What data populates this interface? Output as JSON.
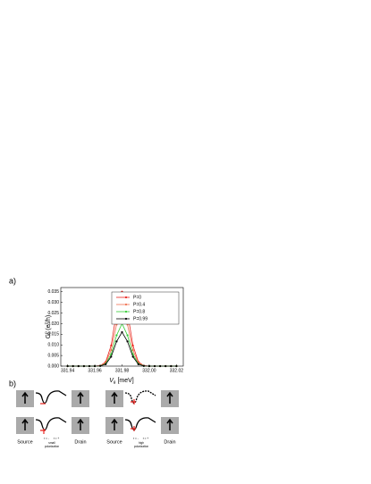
{
  "chart_data": {
    "type": "line",
    "panel_label": "a)",
    "ylabel": {
      "main": "G",
      "sup": "p",
      "sub": "e",
      "unit_open": "(e",
      "unit_sup": "2",
      "unit_close": "/h)"
    },
    "xlabel": {
      "main": "V",
      "sub": "g",
      "unit": "[meV]"
    },
    "x": [
      331.94,
      331.944,
      331.948,
      331.952,
      331.956,
      331.96,
      331.964,
      331.968,
      331.972,
      331.976,
      331.98,
      331.984,
      331.988,
      331.992,
      331.996,
      332.0,
      332.004,
      332.008,
      332.012,
      332.016,
      332.02
    ],
    "series": [
      {
        "name": "P=0",
        "color": "#e8231e",
        "values": [
          0,
          0,
          0,
          0,
          0,
          0,
          0.0002,
          0.002,
          0.0097,
          0.0254,
          0.035,
          0.0254,
          0.0097,
          0.002,
          0.0002,
          0,
          0,
          0,
          0,
          0,
          0
        ]
      },
      {
        "name": "P=0.4",
        "color": "#f07050",
        "values": [
          0,
          0,
          0,
          0,
          0,
          0,
          0.0002,
          0.0015,
          0.0075,
          0.0196,
          0.027,
          0.0196,
          0.0075,
          0.0015,
          0.0002,
          0,
          0,
          0,
          0,
          0,
          0
        ]
      },
      {
        "name": "P=0.8",
        "color": "#33cc33",
        "values": [
          0,
          0,
          0,
          0,
          0,
          0,
          0.0001,
          0.0011,
          0.0056,
          0.0145,
          0.02,
          0.0145,
          0.0056,
          0.0011,
          0.0001,
          0,
          0,
          0,
          0,
          0,
          0
        ]
      },
      {
        "name": "P=0.99",
        "color": "#000000",
        "values": [
          0,
          0,
          0,
          0,
          0,
          0,
          0.0001,
          0.0009,
          0.0044,
          0.0116,
          0.016,
          0.0116,
          0.0044,
          0.0009,
          0.0001,
          0,
          0,
          0,
          0,
          0,
          0
        ]
      }
    ],
    "xlim": [
      331.935,
      332.025
    ],
    "xticks": [
      {
        "value": 331.94,
        "label": "331.94"
      },
      {
        "value": 331.96,
        "label": "331.96"
      },
      {
        "value": 331.98,
        "label": "331.98"
      },
      {
        "value": 332.0,
        "label": "332.00"
      },
      {
        "value": 332.02,
        "label": "332.02"
      }
    ],
    "ylim": [
      0,
      0.037
    ],
    "yticks": [
      {
        "value": 0,
        "label": "0.000"
      },
      {
        "value": 0.005,
        "label": "0.005"
      },
      {
        "value": 0.01,
        "label": "0.010"
      },
      {
        "value": 0.015,
        "label": "0.015"
      },
      {
        "value": 0.02,
        "label": "0.020"
      },
      {
        "value": 0.025,
        "label": "0.025"
      },
      {
        "value": 0.03,
        "label": "0.030"
      },
      {
        "value": 0.035,
        "label": "0.035"
      }
    ],
    "legend": "upper right"
  },
  "diagram": {
    "panel_label": "b)",
    "left": {
      "source": "Source",
      "drain": "Drain",
      "r_minus": "r = -",
      "r_plus": "r = +",
      "caption_1": "small",
      "caption_2": "polarization"
    },
    "right": {
      "source": "Source",
      "drain": "Drain",
      "r_minus": "r = -",
      "r_plus": "r = +",
      "caption_1": "high",
      "caption_2": "polarization"
    }
  }
}
